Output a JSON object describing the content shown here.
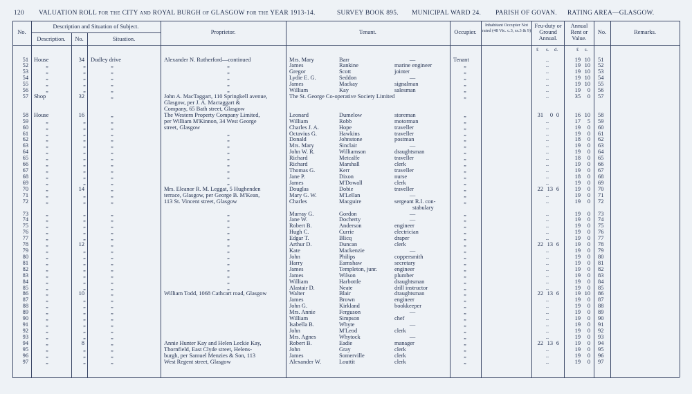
{
  "header": {
    "page": "120",
    "title": "VALUATION ROLL for the CITY and ROYAL BURGH of GLASGOW for the YEAR 1913-14.",
    "survey": "SURVEY BOOK 895.",
    "ward": "MUNICIPAL WARD 24.",
    "parish": "PARISH OF GOVAN.",
    "area": "RATING AREA—GLASGOW."
  },
  "columns": {
    "no": "No.",
    "subject": "Description and Situation of Subject.",
    "description": "Description.",
    "house": "No.",
    "situation": "Situation.",
    "proprietor": "Proprietor.",
    "tenant": "Tenant.",
    "occupier": "Occupier.",
    "inhabitant": "Inhabitant Occupier Not rated (48 Vic. c.3, ss.3 & 9)",
    "feu": "Feu-duty or Ground Annual.",
    "rent": "Annual Rent or Value.",
    "no2": "No.",
    "remarks": "Remarks.",
    "units": {
      "feu_l": "£",
      "feu_s": "s.",
      "feu_d": "d.",
      "rent_l": "£",
      "rent_s": "s."
    }
  },
  "rows": [
    {
      "no": "51",
      "description": "House",
      "house": "34",
      "situation": "Dudley drive",
      "proprietor": [
        "Alexander N. Rutherford—continued"
      ],
      "tenant": {
        "first": "Mrs. Mary",
        "last": "Barr",
        "occupation": [
          "—"
        ]
      },
      "occupier": "Tenant",
      "feu": [
        ".."
      ],
      "rent": [
        "19",
        "10"
      ]
    },
    {
      "no": "52",
      "description": "„",
      "house": "„",
      "situation": "„",
      "proprietor": [
        "„"
      ],
      "tenant": {
        "first": "James",
        "last": "Rankine",
        "occupation": [
          "marine engineer"
        ]
      },
      "occupier": "„",
      "feu": [
        ".."
      ],
      "rent": [
        "19",
        "10"
      ]
    },
    {
      "no": "53",
      "description": "„",
      "house": "„",
      "situation": "„",
      "proprietor": [
        "„"
      ],
      "tenant": {
        "first": "Gregor",
        "last": "Scott",
        "occupation": [
          "jointer"
        ]
      },
      "occupier": "„",
      "feu": [
        ".."
      ],
      "rent": [
        "19",
        "10"
      ]
    },
    {
      "no": "54",
      "description": "„",
      "house": "„",
      "situation": "„",
      "proprietor": [
        "„"
      ],
      "tenant": {
        "first": "Lydie E. G.",
        "last": "Seddon",
        "occupation": [
          "—"
        ]
      },
      "occupier": "„",
      "feu": [
        ".."
      ],
      "rent": [
        "19",
        "10"
      ]
    },
    {
      "no": "55",
      "description": "„",
      "house": "„",
      "situation": "„",
      "proprietor": [
        "„"
      ],
      "tenant": {
        "first": "James",
        "last": "Mackay",
        "occupation": [
          "signalman"
        ]
      },
      "occupier": "„",
      "feu": [
        ".."
      ],
      "rent": [
        "19",
        "10"
      ]
    },
    {
      "no": "56",
      "description": "„",
      "house": "„",
      "situation": "„",
      "proprietor": [
        "„"
      ],
      "tenant": {
        "first": "William",
        "last": "Kay",
        "occupation": [
          "salesman"
        ]
      },
      "occupier": "„",
      "feu": [
        ".."
      ],
      "rent": [
        "19",
        "0"
      ]
    },
    {
      "no": "57",
      "description": "Shop",
      "house": "32",
      "situation": "„",
      "proprietor": [
        "John A. MacTaggart, 110 Springkell avenue,",
        "Glasgow, per J. A. Mactaggart &",
        "Company, 65 Bath street, Glasgow"
      ],
      "tenant": {
        "first": "The St. George Co-operative Society Limited"
      },
      "occupier": "„",
      "feu": [
        ".."
      ],
      "rent": [
        "35",
        "0"
      ]
    },
    {
      "no": "58",
      "description": "House",
      "house": "16",
      "situation": "„",
      "proprietor": [
        "The Western Property Company Limited,",
        "per William M'Kinnon, 34 West George",
        "street, Glasgow"
      ],
      "tenant": {
        "first": "Leonard",
        "last": "Dumelow",
        "occupation": [
          "storeman"
        ]
      },
      "occupier": "„",
      "feu": [
        "31",
        "0",
        "0"
      ],
      "rent": [
        "16",
        "10"
      ]
    },
    {
      "no": "59",
      "description": "„",
      "house": "„",
      "situation": "„",
      "tenant": {
        "first": "William",
        "last": "Robb",
        "occupation": [
          "motorman"
        ]
      },
      "occupier": "„",
      "feu": [
        ".."
      ],
      "rent": [
        "17",
        "5"
      ]
    },
    {
      "no": "60",
      "description": "„",
      "house": "„",
      "situation": "„",
      "tenant": {
        "first": "Charles J. A.",
        "last": "Hope",
        "occupation": [
          "traveller"
        ]
      },
      "occupier": "„",
      "feu": [
        ".."
      ],
      "rent": [
        "19",
        "0"
      ]
    },
    {
      "no": "61",
      "description": "„",
      "house": "„",
      "situation": "„",
      "proprietor": [
        "„"
      ],
      "tenant": {
        "first": "Octavius G.",
        "last": "Hawkins",
        "occupation": [
          "traveller"
        ]
      },
      "occupier": "„",
      "feu": [
        ".."
      ],
      "rent": [
        "19",
        "0"
      ]
    },
    {
      "no": "62",
      "description": "„",
      "house": "„",
      "situation": "„",
      "proprietor": [
        "„"
      ],
      "tenant": {
        "first": "Donald",
        "last": "Johnstone",
        "occupation": [
          "postman"
        ]
      },
      "occupier": "„",
      "feu": [
        ".."
      ],
      "rent": [
        "18",
        "0"
      ]
    },
    {
      "no": "63",
      "description": "„",
      "house": "„",
      "situation": "„",
      "proprietor": [
        "„"
      ],
      "tenant": {
        "first": "Mrs. Mary",
        "last": "Sinclair",
        "occupation": [
          "—"
        ]
      },
      "occupier": "„",
      "feu": [
        ".."
      ],
      "rent": [
        "19",
        "0"
      ]
    },
    {
      "no": "64",
      "description": "„",
      "house": "„",
      "situation": "„",
      "proprietor": [
        "„"
      ],
      "tenant": {
        "first": "John W. R.",
        "last": "Williamson",
        "occupation": [
          "draughtsman"
        ]
      },
      "occupier": "„",
      "feu": [
        ".."
      ],
      "rent": [
        "19",
        "0"
      ]
    },
    {
      "no": "65",
      "description": "„",
      "house": "„",
      "situation": "„",
      "proprietor": [
        "„"
      ],
      "tenant": {
        "first": "Richard",
        "last": "Metcalfe",
        "occupation": [
          "traveller"
        ]
      },
      "occupier": "„",
      "feu": [
        ".."
      ],
      "rent": [
        "18",
        "0"
      ]
    },
    {
      "no": "66",
      "description": "„",
      "house": "„",
      "situation": "„",
      "proprietor": [
        "„"
      ],
      "tenant": {
        "first": "Richard",
        "last": "Marshall",
        "occupation": [
          "clerk"
        ]
      },
      "occupier": "„",
      "feu": [
        ".."
      ],
      "rent": [
        "19",
        "0"
      ]
    },
    {
      "no": "67",
      "description": "„",
      "house": "„",
      "situation": "„",
      "proprietor": [
        "„"
      ],
      "tenant": {
        "first": "Thomas G.",
        "last": "Kerr",
        "occupation": [
          "traveller"
        ]
      },
      "occupier": "„",
      "feu": [
        ".."
      ],
      "rent": [
        "19",
        "0"
      ]
    },
    {
      "no": "68",
      "description": "„",
      "house": "„",
      "situation": "„",
      "proprietor": [
        "„"
      ],
      "tenant": {
        "first": "Jane P.",
        "last": "Dixon",
        "occupation": [
          "nurse"
        ]
      },
      "occupier": "„",
      "feu": [
        ".."
      ],
      "rent": [
        "18",
        "0"
      ]
    },
    {
      "no": "69",
      "description": "„",
      "house": "„",
      "situation": "„",
      "proprietor": [
        "„"
      ],
      "tenant": {
        "first": "James",
        "last": "M'Dowall",
        "occupation": [
          "clerk"
        ]
      },
      "occupier": "„",
      "feu": [
        ".."
      ],
      "rent": [
        "19",
        "0"
      ]
    },
    {
      "no": "70",
      "description": "„",
      "house": "14",
      "situation": "„",
      "proprietor": [
        "Mrs. Eleanor R. M. Leggat, 5 Hughenden",
        "terrace, Glasgow, per George B. M'Kean,",
        "113 St. Vincent street, Glasgow"
      ],
      "tenant": {
        "first": "Douglas",
        "last": "Dobie",
        "occupation": [
          "traveller"
        ]
      },
      "occupier": "„",
      "feu": [
        "22",
        "13",
        "6"
      ],
      "rent": [
        "19",
        "0"
      ]
    },
    {
      "no": "71",
      "description": "„",
      "house": "„",
      "situation": "„",
      "tenant": {
        "first": "Mary G. W.",
        "last": "M'Lellan",
        "occupation": [
          "—"
        ]
      },
      "occupier": "„",
      "feu": [
        ".."
      ],
      "rent": [
        "19",
        "0"
      ]
    },
    {
      "no": "72",
      "description": "„",
      "house": "„",
      "situation": "„",
      "tenant": {
        "first": "Charles",
        "last": "Macguire",
        "occupation": [
          "sergeant R.I. con-",
          "stabulary"
        ]
      },
      "occupier": "„",
      "feu": [
        ".."
      ],
      "rent": [
        "19",
        "0"
      ]
    },
    {
      "no": "73",
      "description": "„",
      "house": "„",
      "situation": "„",
      "proprietor": [
        "„"
      ],
      "tenant": {
        "first": "Murray G.",
        "last": "Gordon",
        "occupation": [
          "—"
        ]
      },
      "occupier": "„",
      "feu": [
        ".."
      ],
      "rent": [
        "19",
        "0"
      ]
    },
    {
      "no": "74",
      "description": "„",
      "house": "„",
      "situation": "„",
      "proprietor": [
        "„"
      ],
      "tenant": {
        "first": "Jane W.",
        "last": "Docherty",
        "occupation": [
          "—"
        ]
      },
      "occupier": "„",
      "feu": [
        ".."
      ],
      "rent": [
        "19",
        "0"
      ]
    },
    {
      "no": "75",
      "description": "„",
      "house": "„",
      "situation": "„",
      "proprietor": [
        "„"
      ],
      "tenant": {
        "first": "Robert B.",
        "last": "Anderson",
        "occupation": [
          "engineer"
        ]
      },
      "occupier": "„",
      "feu": [
        ".."
      ],
      "rent": [
        "19",
        "0"
      ]
    },
    {
      "no": "76",
      "description": "„",
      "house": "„",
      "situation": "„",
      "proprietor": [
        "„"
      ],
      "tenant": {
        "first": "Hugh C.",
        "last": "Currie",
        "occupation": [
          "electrician"
        ]
      },
      "occupier": "„",
      "feu": [
        ".."
      ],
      "rent": [
        "19",
        "0"
      ]
    },
    {
      "no": "77",
      "description": "„",
      "house": "„",
      "situation": "„",
      "proprietor": [
        "„"
      ],
      "tenant": {
        "first": "Edgar T.",
        "last": "Blicq",
        "occupation": [
          "draper"
        ]
      },
      "occupier": "„",
      "feu": [
        ".."
      ],
      "rent": [
        "19",
        "0"
      ]
    },
    {
      "no": "78",
      "description": "„",
      "house": "12",
      "situation": "„",
      "proprietor": [
        "„"
      ],
      "tenant": {
        "first": "Arthur D.",
        "last": "Duncan",
        "occupation": [
          "clerk"
        ]
      },
      "occupier": "„",
      "feu": [
        "22",
        "13",
        "6"
      ],
      "rent": [
        "19",
        "0"
      ]
    },
    {
      "no": "79",
      "description": "„",
      "house": "„",
      "situation": "„",
      "proprietor": [
        "„"
      ],
      "tenant": {
        "first": "Kate",
        "last": "Mackenzie",
        "occupation": [
          "—"
        ]
      },
      "occupier": "„",
      "feu": [
        ".."
      ],
      "rent": [
        "19",
        "0"
      ]
    },
    {
      "no": "80",
      "description": "„",
      "house": "„",
      "situation": "„",
      "proprietor": [
        "„"
      ],
      "tenant": {
        "first": "John",
        "last": "Philips",
        "occupation": [
          "coppersmith"
        ]
      },
      "occupier": "„",
      "feu": [
        ".."
      ],
      "rent": [
        "19",
        "0"
      ]
    },
    {
      "no": "81",
      "description": "„",
      "house": "„",
      "situation": "„",
      "proprietor": [
        "„"
      ],
      "tenant": {
        "first": "Harry",
        "last": "Earnshaw",
        "occupation": [
          "secretary"
        ]
      },
      "occupier": "„",
      "feu": [
        ".."
      ],
      "rent": [
        "19",
        "0"
      ]
    },
    {
      "no": "82",
      "description": "„",
      "house": "„",
      "situation": "„",
      "proprietor": [
        "„"
      ],
      "tenant": {
        "first": "James",
        "last": "Templeton, junr.",
        "occupation": [
          "engineer"
        ]
      },
      "occupier": "„",
      "feu": [
        ".."
      ],
      "rent": [
        "19",
        "0"
      ]
    },
    {
      "no": "83",
      "description": "„",
      "house": "„",
      "situation": "„",
      "proprietor": [
        "„"
      ],
      "tenant": {
        "first": "James",
        "last": "Wilson",
        "occupation": [
          "plumber"
        ]
      },
      "occupier": "„",
      "feu": [
        ".."
      ],
      "rent": [
        "19",
        "0"
      ]
    },
    {
      "no": "84",
      "description": "„",
      "house": "„",
      "situation": "„",
      "proprietor": [
        "„"
      ],
      "tenant": {
        "first": "William",
        "last": "Harbottle",
        "occupation": [
          "draughtsman"
        ]
      },
      "occupier": "„",
      "feu": [
        ".."
      ],
      "rent": [
        "19",
        "0"
      ]
    },
    {
      "no": "85",
      "description": "„",
      "house": "„",
      "situation": "„",
      "proprietor": [
        "„"
      ],
      "tenant": {
        "first": "Alastair D.",
        "last": "Neate",
        "occupation": [
          "drill instructor"
        ]
      },
      "occupier": "„",
      "feu": [
        ".."
      ],
      "rent": [
        "19",
        "0"
      ]
    },
    {
      "no": "86",
      "description": "„",
      "house": "10",
      "situation": "„",
      "proprietor": [
        "William Todd, 1068 Cathcart road, Glasgow"
      ],
      "tenant": {
        "first": "Walter",
        "last": "Blair",
        "occupation": [
          "draughtsman"
        ]
      },
      "occupier": "„",
      "feu": [
        "22",
        "13",
        "6"
      ],
      "rent": [
        "19",
        "10"
      ]
    },
    {
      "no": "87",
      "description": "„",
      "house": "„",
      "situation": "„",
      "tenant": {
        "first": "James",
        "last": "Brown",
        "occupation": [
          "engineer"
        ]
      },
      "occupier": "„",
      "feu": [
        ".."
      ],
      "rent": [
        "19",
        "0"
      ]
    },
    {
      "no": "88",
      "description": "„",
      "house": "„",
      "situation": "„",
      "tenant": {
        "first": "John G.",
        "last": "Kirkland",
        "occupation": [
          "bookkeeper"
        ]
      },
      "occupier": "„",
      "feu": [
        ".."
      ],
      "rent": [
        "19",
        "0"
      ]
    },
    {
      "no": "89",
      "description": "„",
      "house": "„",
      "situation": "„",
      "tenant": {
        "first": "Mrs. Annie",
        "last": "Ferguson",
        "occupation": [
          "—"
        ]
      },
      "occupier": "„",
      "feu": [
        ".."
      ],
      "rent": [
        "19",
        "0"
      ]
    },
    {
      "no": "90",
      "description": "„",
      "house": "„",
      "situation": "„",
      "tenant": {
        "first": "William",
        "last": "Simpson",
        "occupation": [
          "chef"
        ]
      },
      "occupier": "„",
      "feu": [
        ".."
      ],
      "rent": [
        "19",
        "0"
      ]
    },
    {
      "no": "91",
      "description": "„",
      "house": "„",
      "situation": "„",
      "tenant": {
        "first": "Isabella B.",
        "last": "Whyte",
        "occupation": [
          "—"
        ]
      },
      "occupier": "„",
      "feu": [
        ".."
      ],
      "rent": [
        "19",
        "0"
      ]
    },
    {
      "no": "92",
      "description": "„",
      "house": "„",
      "situation": "„",
      "tenant": {
        "first": "John",
        "last": "M'Leod",
        "occupation": [
          "clerk"
        ]
      },
      "occupier": "„",
      "feu": [
        ".."
      ],
      "rent": [
        "19",
        "0"
      ]
    },
    {
      "no": "93",
      "description": "„",
      "house": "„",
      "situation": "„",
      "tenant": {
        "first": "Mrs. Agnes",
        "last": "Whytock",
        "occupation": [
          "—"
        ]
      },
      "occupier": "„",
      "feu": [
        ".."
      ],
      "rent": [
        "19",
        "0"
      ]
    },
    {
      "no": "94",
      "description": "„",
      "house": "8",
      "situation": "„",
      "proprietor": [
        "Annie Hunter Kay and Helen Leckie Kay,",
        "Thornfield, East Clyde street, Helens-",
        "burgh, per Samuel Menzies & Son, 113",
        "West Regent street, Glasgow"
      ],
      "tenant": {
        "first": "Robert B.",
        "last": "Eadie",
        "occupation": [
          "manager"
        ]
      },
      "occupier": "„",
      "feu": [
        "22",
        "13",
        "6"
      ],
      "rent": [
        "19",
        "0"
      ]
    },
    {
      "no": "95",
      "description": "„",
      "house": "„",
      "situation": "„",
      "tenant": {
        "first": "John",
        "last": "Gray",
        "occupation": [
          "clerk"
        ]
      },
      "occupier": "„",
      "feu": [
        ".."
      ],
      "rent": [
        "19",
        "0"
      ]
    },
    {
      "no": "96",
      "description": "„",
      "house": "„",
      "situation": "„",
      "tenant": {
        "first": "James",
        "last": "Somerville",
        "occupation": [
          "clerk"
        ]
      },
      "occupier": "„",
      "feu": [
        ".."
      ],
      "rent": [
        "19",
        "0"
      ]
    },
    {
      "no": "97",
      "description": "„",
      "house": "„",
      "situation": "„",
      "tenant": {
        "first": "Alexander W.",
        "last": "Louttit",
        "occupation": [
          "clerk"
        ]
      },
      "occupier": "„",
      "feu": [
        ".."
      ],
      "rent": [
        "19",
        "0"
      ]
    }
  ]
}
